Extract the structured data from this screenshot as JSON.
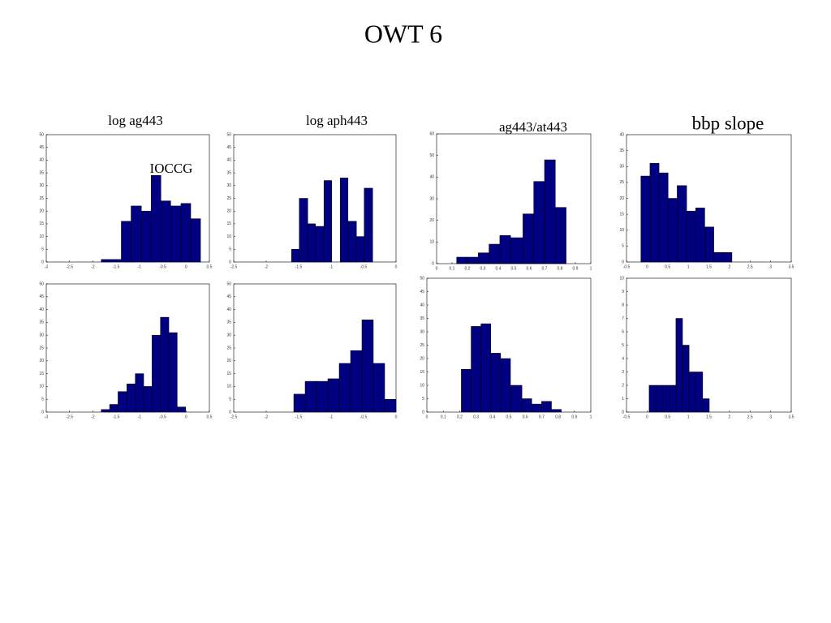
{
  "title": "OWT 6",
  "chart_data": [
    {
      "type": "histogram",
      "title": "log ag443",
      "annotation": "IOCCG",
      "color": "#000080",
      "bins": [
        -1.82,
        -1.6,
        -1.39,
        -1.18,
        -0.96,
        -0.75,
        -0.54,
        -0.33,
        -0.11,
        0.1,
        0.31
      ],
      "values": [
        1,
        1,
        16,
        22,
        20,
        34,
        24,
        22,
        23,
        17
      ],
      "xlim": [
        -3,
        0.5
      ],
      "xticks": [
        -3,
        -2.5,
        -2,
        -1.5,
        -1,
        -0.5,
        0,
        0.5
      ],
      "ylim": [
        0,
        50
      ],
      "yticks": [
        0,
        5,
        10,
        15,
        20,
        25,
        30,
        35,
        40,
        45,
        50
      ]
    },
    {
      "type": "histogram",
      "title": "log aph443",
      "color": "#000080",
      "bins": [
        -1.61,
        -1.49,
        -1.36,
        -1.24,
        -1.11,
        -0.99,
        -0.86,
        -0.74,
        -0.61,
        -0.49,
        -0.36
      ],
      "values": [
        5,
        25,
        15,
        14,
        32,
        0,
        33,
        16,
        10,
        29
      ],
      "xlim": [
        -2.5,
        0
      ],
      "xticks": [
        -2.5,
        -2,
        -1.5,
        -1,
        -0.5,
        0
      ],
      "ylim": [
        0,
        50
      ],
      "yticks": [
        0,
        5,
        10,
        15,
        20,
        25,
        30,
        35,
        40,
        45,
        50
      ]
    },
    {
      "type": "histogram",
      "title": "ag443/at443",
      "color": "#000080",
      "bins": [
        0.13,
        0.2,
        0.27,
        0.34,
        0.41,
        0.48,
        0.56,
        0.63,
        0.7,
        0.77,
        0.84
      ],
      "values": [
        3,
        3,
        5,
        9,
        13,
        12,
        23,
        38,
        48,
        26
      ],
      "xlim": [
        0,
        1
      ],
      "xticks": [
        0,
        0.1,
        0.2,
        0.3,
        0.4,
        0.5,
        0.6,
        0.7,
        0.8,
        0.9,
        1
      ],
      "ylim": [
        0,
        60
      ],
      "yticks": [
        0,
        10,
        20,
        30,
        40,
        50,
        60
      ]
    },
    {
      "type": "histogram",
      "title": "bbp slope",
      "color": "#000080",
      "bins": [
        -0.15,
        0.07,
        0.29,
        0.51,
        0.73,
        0.96,
        1.18,
        1.4,
        1.62,
        1.84,
        2.06
      ],
      "values": [
        27,
        31,
        28,
        20,
        24,
        16,
        17,
        11,
        3,
        3
      ],
      "xlim": [
        -0.5,
        3.5
      ],
      "xticks": [
        -0.5,
        0,
        0.5,
        1,
        1.5,
        2,
        2.5,
        3,
        3.5
      ],
      "ylim": [
        0,
        40
      ],
      "yticks": [
        0,
        5,
        10,
        15,
        20,
        25,
        30,
        35,
        40
      ]
    },
    {
      "type": "histogram",
      "color": "#000080",
      "bins": [
        -1.82,
        -1.64,
        -1.46,
        -1.27,
        -1.09,
        -0.91,
        -0.73,
        -0.55,
        -0.37,
        -0.19,
        -0.01
      ],
      "values": [
        1,
        3,
        8,
        11,
        15,
        10,
        30,
        37,
        31,
        2
      ],
      "xlim": [
        -3,
        0.5
      ],
      "xticks": [
        -3,
        -2.5,
        -2,
        -1.5,
        -1,
        -0.5,
        0,
        0.5
      ],
      "ylim": [
        0,
        50
      ],
      "yticks": [
        0,
        5,
        10,
        15,
        20,
        25,
        30,
        35,
        40,
        45,
        50
      ]
    },
    {
      "type": "histogram",
      "color": "#000080",
      "bins": [
        -1.575,
        -1.4,
        -1.225,
        -1.05,
        -0.875,
        -0.7,
        -0.525,
        -0.35,
        -0.175,
        0
      ],
      "values": [
        7,
        12,
        12,
        13,
        19,
        24,
        36,
        19,
        5
      ],
      "xlim": [
        -2.5,
        0
      ],
      "xticks": [
        -2.5,
        -2,
        -1.5,
        -1,
        -0.5,
        0
      ],
      "ylim": [
        0,
        50
      ],
      "yticks": [
        0,
        5,
        10,
        15,
        20,
        25,
        30,
        35,
        40,
        45,
        50
      ]
    },
    {
      "type": "histogram",
      "color": "#000080",
      "bins": [
        0.21,
        0.27,
        0.33,
        0.39,
        0.45,
        0.51,
        0.58,
        0.64,
        0.7,
        0.76,
        0.82
      ],
      "values": [
        16,
        32,
        33,
        22,
        20,
        10,
        5,
        3,
        4,
        1
      ],
      "xlim": [
        0,
        1
      ],
      "xticks": [
        0,
        0.1,
        0.2,
        0.3,
        0.4,
        0.5,
        0.6,
        0.7,
        0.8,
        0.9,
        1
      ],
      "ylim": [
        0,
        50
      ],
      "yticks": [
        0,
        5,
        10,
        15,
        20,
        25,
        30,
        35,
        40,
        45,
        50
      ]
    },
    {
      "type": "histogram",
      "color": "#000080",
      "bins": [
        0.05,
        0.21,
        0.37,
        0.54,
        0.7,
        0.86,
        1.02,
        1.18,
        1.35,
        1.51,
        1.67
      ],
      "values": [
        2,
        2,
        2,
        2,
        7,
        5,
        3,
        3,
        1,
        0
      ],
      "xlim": [
        -0.5,
        3.5
      ],
      "xticks": [
        -0.5,
        0,
        0.5,
        1,
        1.5,
        2,
        2.5,
        3,
        3.5
      ],
      "ylim": [
        0,
        10
      ],
      "yticks": [
        0,
        1,
        2,
        3,
        4,
        5,
        6,
        7,
        8,
        9,
        10
      ]
    }
  ]
}
